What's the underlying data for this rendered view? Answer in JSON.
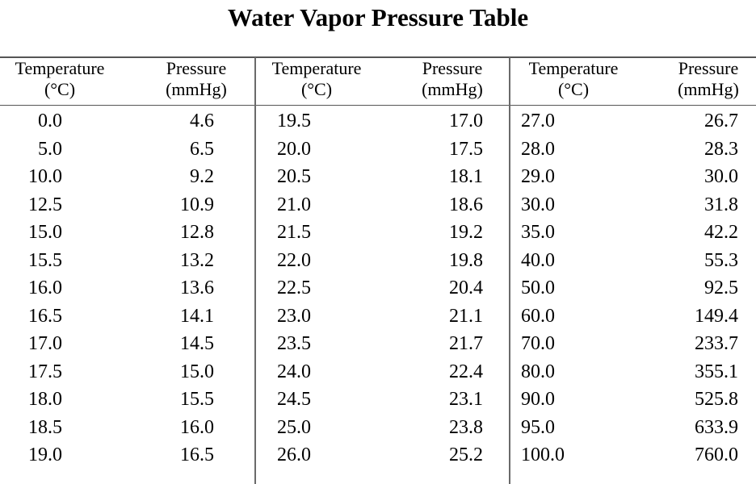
{
  "title": "Water Vapor Pressure Table",
  "headers": {
    "temperature": [
      "Temperature",
      "(°C)"
    ],
    "pressure": [
      "Pressure",
      "(mmHg)"
    ]
  },
  "groups": [
    {
      "temperatures": [
        "0.0",
        "5.0",
        "10.0",
        "12.5",
        "15.0",
        "15.5",
        "16.0",
        "16.5",
        "17.0",
        "17.5",
        "18.0",
        "18.5",
        "19.0"
      ],
      "pressures": [
        "4.6",
        "6.5",
        "9.2",
        "10.9",
        "12.8",
        "13.2",
        "13.6",
        "14.1",
        "14.5",
        "15.0",
        "15.5",
        "16.0",
        "16.5"
      ]
    },
    {
      "temperatures": [
        "19.5",
        "20.0",
        "20.5",
        "21.0",
        "21.5",
        "22.0",
        "22.5",
        "23.0",
        "23.5",
        "24.0",
        "24.5",
        "25.0",
        "26.0"
      ],
      "pressures": [
        "17.0",
        "17.5",
        "18.1",
        "18.6",
        "19.2",
        "19.8",
        "20.4",
        "21.1",
        "21.7",
        "22.4",
        "23.1",
        "23.8",
        "25.2"
      ]
    },
    {
      "temperatures": [
        "27.0",
        "28.0",
        "29.0",
        "30.0",
        "35.0",
        "40.0",
        "50.0",
        "60.0",
        "70.0",
        "80.0",
        "90.0",
        "95.0",
        "100.0"
      ],
      "pressures": [
        "26.7",
        "28.3",
        "30.0",
        "31.8",
        "42.2",
        "55.3",
        "92.5",
        "149.4",
        "233.7",
        "355.1",
        "525.8",
        "633.9",
        "760.0"
      ]
    }
  ]
}
